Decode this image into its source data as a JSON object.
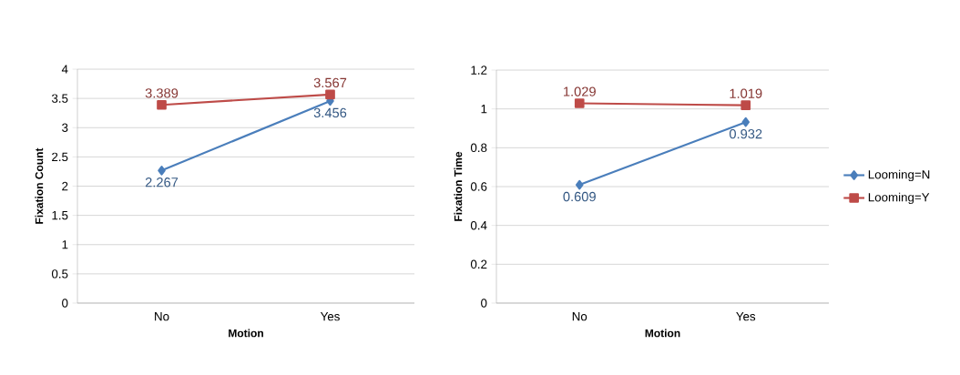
{
  "chart_data": [
    {
      "type": "line",
      "xlabel": "Motion",
      "ylabel": "Fixation Count",
      "categories": [
        "No",
        "Yes"
      ],
      "series": [
        {
          "color": "#4a7ebb",
          "values": [
            2.267,
            3.456
          ],
          "marker": "diamond"
        },
        {
          "color": "#be4b48",
          "values": [
            3.389,
            3.567
          ],
          "marker": "square"
        }
      ],
      "ylim": [
        0,
        4
      ],
      "yticks": [
        0,
        0.5,
        1,
        1.5,
        2,
        2.5,
        3,
        3.5,
        4
      ],
      "grid": "y",
      "data_labels": true,
      "legend": false
    },
    {
      "type": "line",
      "xlabel": "Motion",
      "ylabel": "Fixation Time",
      "categories": [
        "No",
        "Yes"
      ],
      "series": [
        {
          "name": "Looming=N",
          "color": "#4a7ebb",
          "values": [
            0.609,
            0.932
          ],
          "marker": "diamond"
        },
        {
          "name": "Looming=Y",
          "color": "#be4b48",
          "values": [
            1.029,
            1.019
          ],
          "marker": "square"
        }
      ],
      "ylim": [
        0,
        1.2
      ],
      "yticks": [
        0,
        0.2,
        0.4,
        0.6,
        0.8,
        1,
        1.2
      ],
      "grid": "y",
      "data_labels": true,
      "legend": "right"
    }
  ]
}
